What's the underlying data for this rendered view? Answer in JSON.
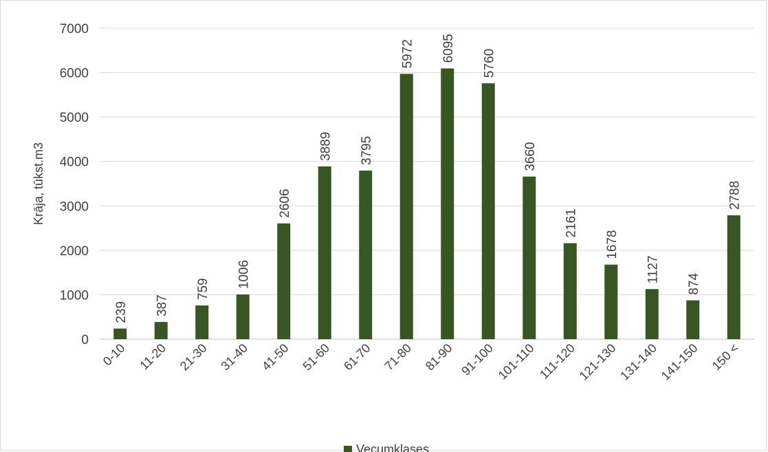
{
  "chart_data": {
    "type": "bar",
    "title": "",
    "xlabel": "",
    "ylabel": "Krāja, tūkst.m3",
    "categories": [
      "0-10",
      "11-20",
      "21-30",
      "31-40",
      "41-50",
      "51-60",
      "61-70",
      "71-80",
      "81-90",
      "91-100",
      "101-110",
      "111-120",
      "121-130",
      "131-140",
      "141-150",
      "150 <"
    ],
    "series": [
      {
        "name": "Vecumklases",
        "values": [
          239,
          387,
          759,
          1006,
          2606,
          3889,
          3795,
          5972,
          6095,
          5760,
          3660,
          2161,
          1678,
          1127,
          874,
          2788
        ]
      }
    ],
    "ylim": [
      0,
      7000
    ],
    "yticks": [
      0,
      1000,
      2000,
      3000,
      4000,
      5000,
      6000,
      7000
    ],
    "grid": true,
    "legend_position": "bottom",
    "colors": {
      "bar": "#375623",
      "grid": "#d9d9d9",
      "text": "#404040"
    },
    "data_labels": true
  }
}
